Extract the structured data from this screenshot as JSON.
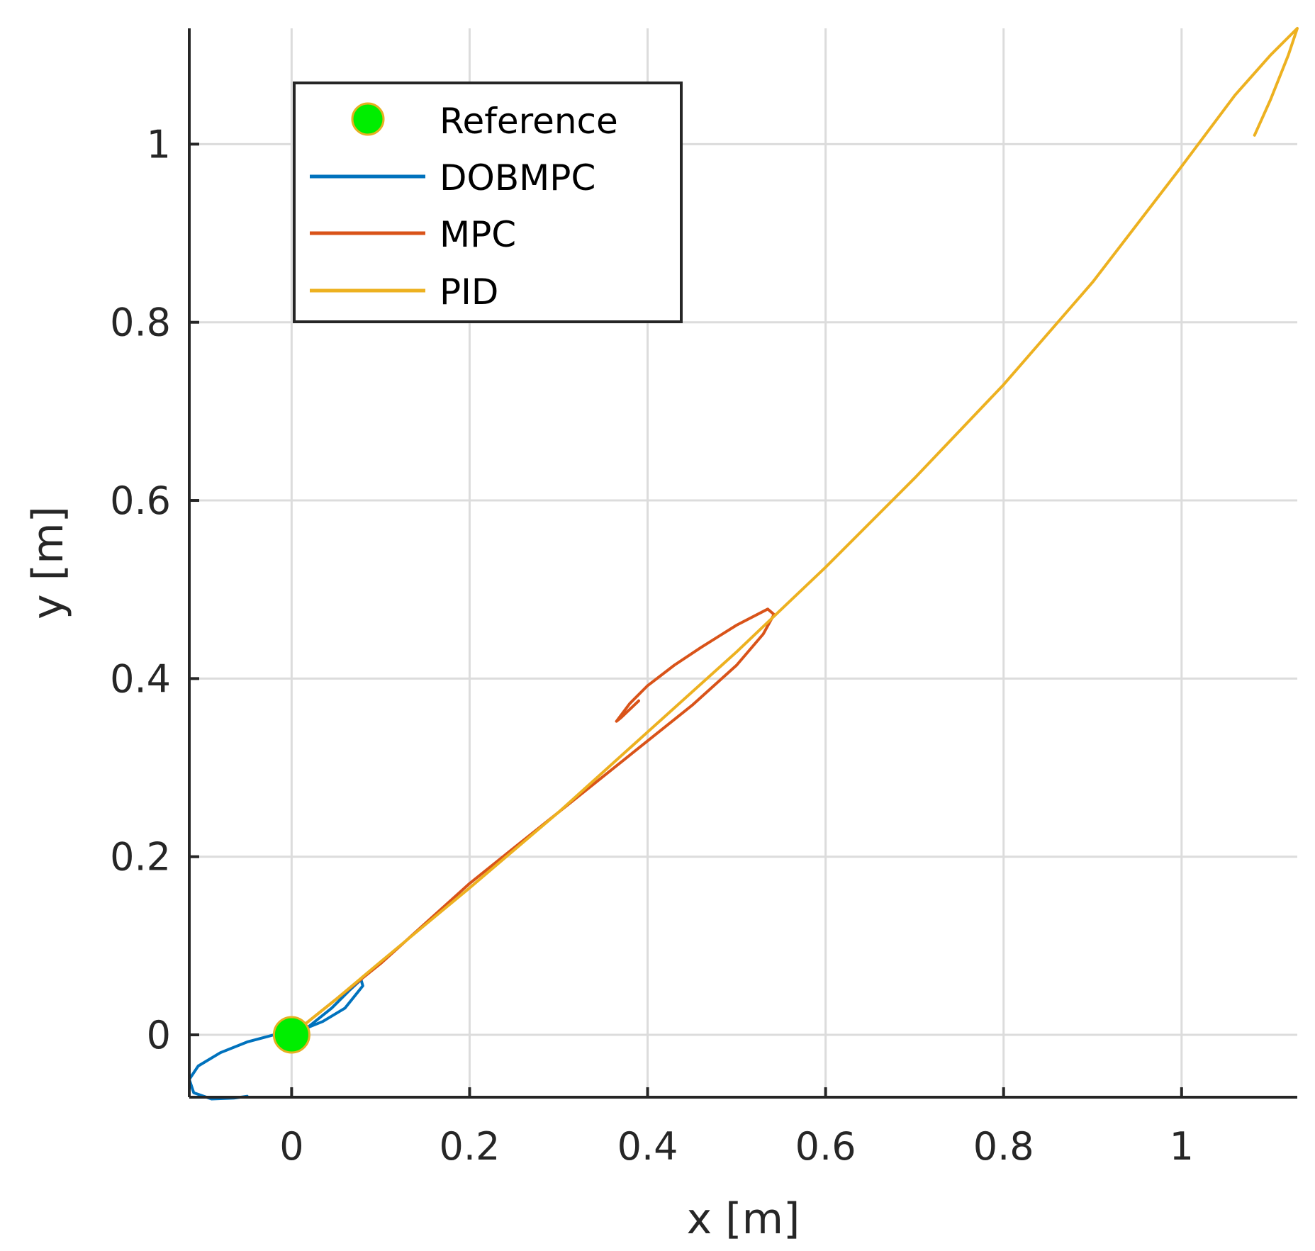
{
  "chart_data": {
    "type": "line",
    "xlabel": "x [m]",
    "ylabel": "y [m]",
    "xlim": [
      -0.115,
      1.13
    ],
    "ylim": [
      -0.07,
      1.13
    ],
    "grid": true,
    "legend_position": "top-left",
    "x_ticks": [
      {
        "value": 0,
        "label": "0"
      },
      {
        "value": 0.2,
        "label": "0.2"
      },
      {
        "value": 0.4,
        "label": "0.4"
      },
      {
        "value": 0.6,
        "label": "0.6"
      },
      {
        "value": 0.8,
        "label": "0.8"
      },
      {
        "value": 1,
        "label": "1"
      }
    ],
    "y_ticks": [
      {
        "value": 0,
        "label": "0"
      },
      {
        "value": 0.2,
        "label": "0.2"
      },
      {
        "value": 0.4,
        "label": "0.4"
      },
      {
        "value": 0.6,
        "label": "0.6"
      },
      {
        "value": 0.8,
        "label": "0.8"
      },
      {
        "value": 1,
        "label": "1"
      }
    ],
    "reference": {
      "name": "Reference",
      "color": "#00ee00",
      "edge_color": "#e6b020",
      "x": 0,
      "y": 0
    },
    "series": [
      {
        "name": "DOBMPC",
        "color": "#0072bd",
        "points": [
          [
            0,
            0
          ],
          [
            0.02,
            0.01
          ],
          [
            0.045,
            0.03
          ],
          [
            0.065,
            0.05
          ],
          [
            0.078,
            0.062
          ],
          [
            0.08,
            0.055
          ],
          [
            0.06,
            0.03
          ],
          [
            0.035,
            0.015
          ],
          [
            0.01,
            0.005
          ],
          [
            -0.02,
            0
          ],
          [
            -0.05,
            -0.008
          ],
          [
            -0.08,
            -0.02
          ],
          [
            -0.105,
            -0.035
          ],
          [
            -0.115,
            -0.05
          ],
          [
            -0.11,
            -0.065
          ],
          [
            -0.09,
            -0.072
          ],
          [
            -0.065,
            -0.071
          ],
          [
            -0.05,
            -0.069
          ]
        ]
      },
      {
        "name": "MPC",
        "color": "#d95319",
        "points": [
          [
            0,
            0
          ],
          [
            0.05,
            0.04
          ],
          [
            0.1,
            0.08
          ],
          [
            0.15,
            0.125
          ],
          [
            0.2,
            0.17
          ],
          [
            0.25,
            0.21
          ],
          [
            0.3,
            0.25
          ],
          [
            0.35,
            0.29
          ],
          [
            0.4,
            0.33
          ],
          [
            0.45,
            0.37
          ],
          [
            0.5,
            0.415
          ],
          [
            0.53,
            0.45
          ],
          [
            0.542,
            0.472
          ],
          [
            0.535,
            0.478
          ],
          [
            0.5,
            0.46
          ],
          [
            0.46,
            0.435
          ],
          [
            0.43,
            0.415
          ],
          [
            0.4,
            0.392
          ],
          [
            0.38,
            0.372
          ],
          [
            0.365,
            0.352
          ],
          [
            0.37,
            0.356
          ],
          [
            0.39,
            0.375
          ]
        ]
      },
      {
        "name": "PID",
        "color": "#edb120",
        "points": [
          [
            0,
            0
          ],
          [
            0.05,
            0.04
          ],
          [
            0.1,
            0.082
          ],
          [
            0.2,
            0.165
          ],
          [
            0.3,
            0.25
          ],
          [
            0.4,
            0.34
          ],
          [
            0.5,
            0.43
          ],
          [
            0.6,
            0.525
          ],
          [
            0.7,
            0.625
          ],
          [
            0.8,
            0.73
          ],
          [
            0.9,
            0.845
          ],
          [
            1.0,
            0.975
          ],
          [
            1.06,
            1.055
          ],
          [
            1.1,
            1.1
          ],
          [
            1.13,
            1.13
          ],
          [
            1.12,
            1.1
          ],
          [
            1.1,
            1.05
          ],
          [
            1.082,
            1.01
          ]
        ]
      }
    ]
  }
}
